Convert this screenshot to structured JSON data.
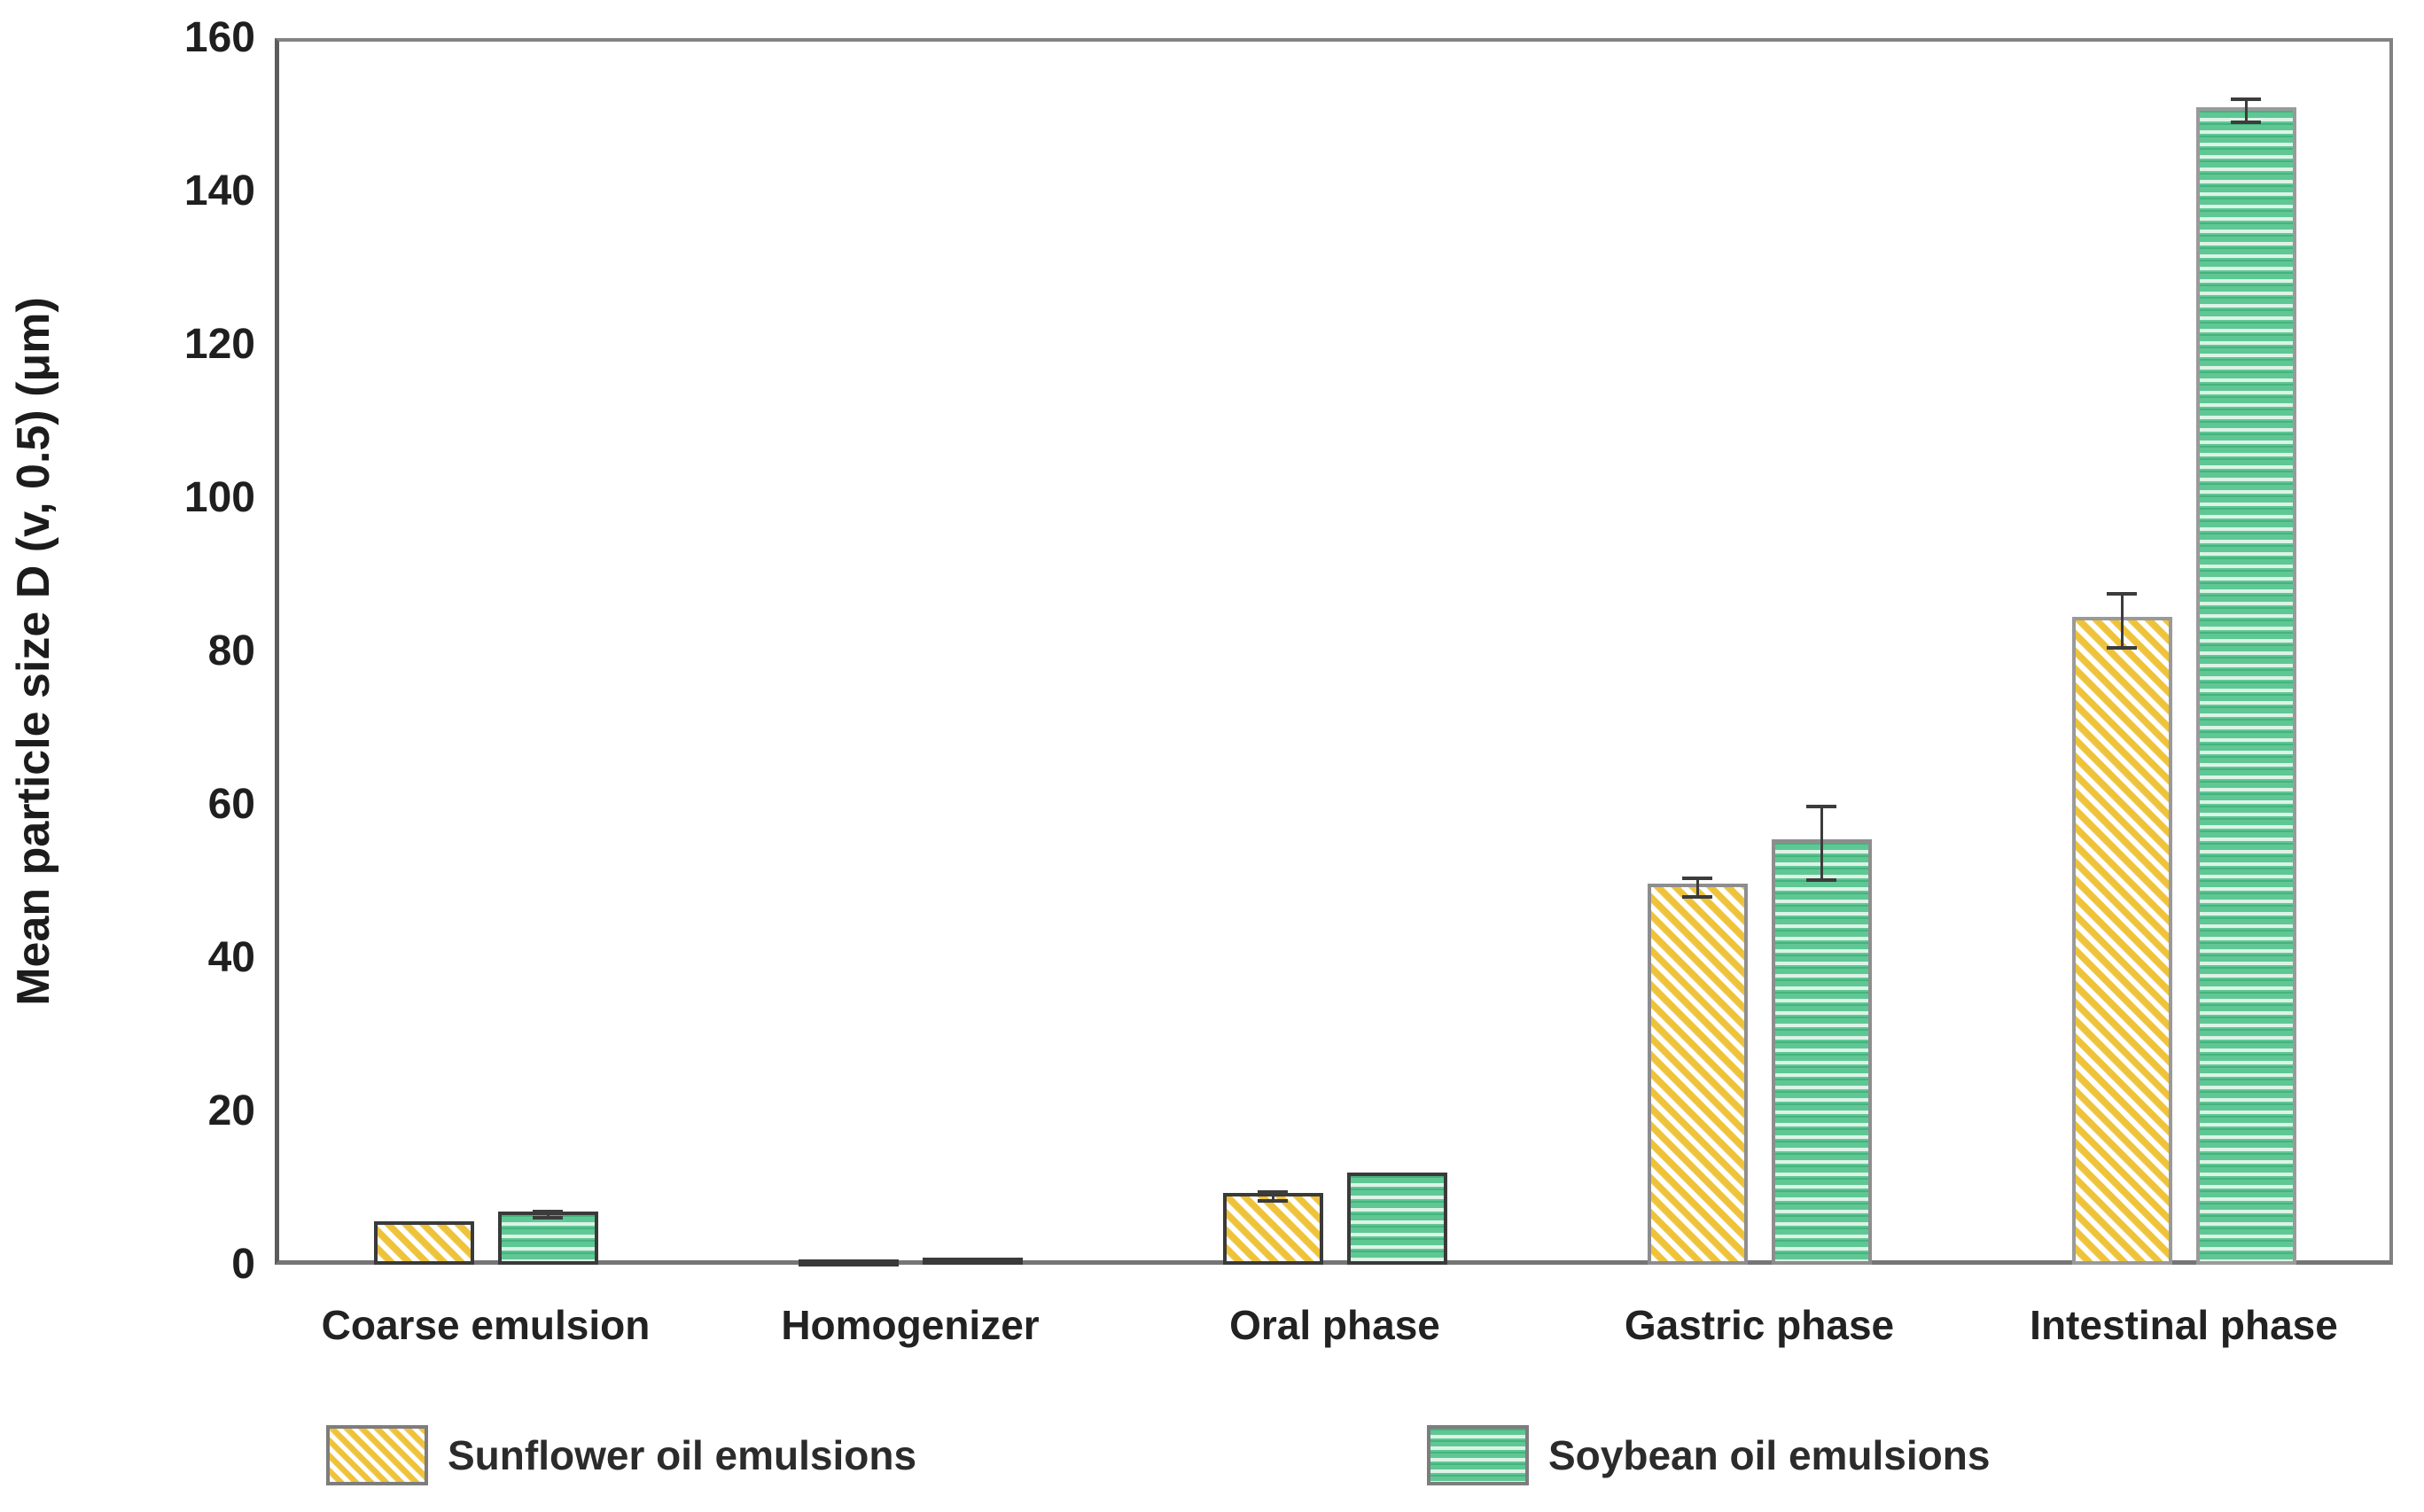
{
  "chart_data": {
    "type": "bar",
    "title": "",
    "ylabel": "Mean particle size D (v, 0.5) (μm)",
    "xlabel": "",
    "ylim": [
      0,
      160
    ],
    "yticks": [
      0,
      20,
      40,
      60,
      80,
      100,
      120,
      140,
      160
    ],
    "grid": false,
    "legend_position": "bottom",
    "categories": [
      "Coarse emulsion",
      "Homogenizer",
      "Oral phase",
      "Gastric phase",
      "Intestinal phase"
    ],
    "series": [
      {
        "name": "Sunflower oil emulsions",
        "pattern": "diagonal-yellow-hatch",
        "fill": "#eec33a",
        "values": [
          5.2,
          0.2,
          8.9,
          49.2,
          84.0
        ],
        "errors": [
          0,
          0,
          0.6,
          1.2,
          3.5
        ]
      },
      {
        "name": "Soybean oil emulsions",
        "pattern": "horizontal-green-stripes",
        "fill": "#5fc794",
        "values": [
          6.5,
          0.5,
          11.6,
          55.0,
          150.5
        ],
        "errors": [
          0.4,
          0,
          0,
          4.8,
          1.5
        ]
      }
    ]
  },
  "colors": {
    "axis_frame": "#828282",
    "error_bar": "#3c3c3c",
    "tick_text": "#1f1f1f",
    "bar_outline_front_groups": "#3a3a3a",
    "bar_outline_back_groups": "#8d8d8d",
    "background": "#ffffff"
  }
}
